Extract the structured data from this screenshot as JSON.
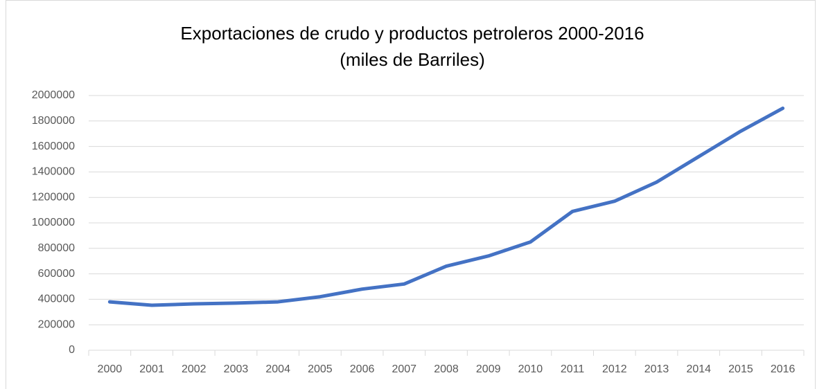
{
  "chart_data": {
    "type": "line",
    "title": "Exportaciones de crudo y productos petroleros 2000-2016",
    "subtitle": "(miles de Barriles)",
    "categories": [
      "2000",
      "2001",
      "2002",
      "2003",
      "2004",
      "2005",
      "2006",
      "2007",
      "2008",
      "2009",
      "2010",
      "2011",
      "2012",
      "2013",
      "2014",
      "2015",
      "2016"
    ],
    "values": [
      380000,
      353000,
      364000,
      370000,
      380000,
      420000,
      480000,
      520000,
      660000,
      740000,
      850000,
      1090000,
      1170000,
      1320000,
      1520000,
      1720000,
      1900000
    ],
    "color": "#4472c4",
    "ylim": [
      0,
      2000000
    ],
    "yticks": [
      0,
      200000,
      400000,
      600000,
      800000,
      1000000,
      1200000,
      1400000,
      1600000,
      1800000,
      2000000
    ],
    "grid": true
  }
}
